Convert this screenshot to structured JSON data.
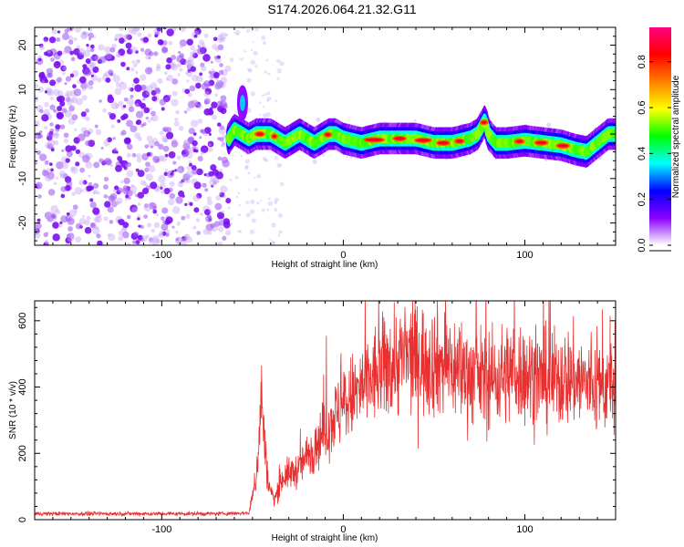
{
  "title": "S174.2026.064.21.32.G11",
  "chart_data": [
    {
      "type": "heatmap",
      "xlabel": "Height of straight line (km)",
      "ylabel": "Frequency (Hz)",
      "xlim": [
        -170,
        150
      ],
      "ylim": [
        -25,
        24
      ],
      "xticks": [
        -100,
        0,
        100
      ],
      "yticks": [
        -20,
        -10,
        0,
        10,
        20
      ],
      "colorbar": {
        "label": "Normalized spectral amplitude",
        "range": [
          0,
          0.95
        ],
        "ticks": [
          0.0,
          0.2,
          0.4,
          0.6,
          0.8
        ],
        "tick_labels": [
          "0.0",
          "0.2",
          "0.4",
          "0.6",
          "0.8"
        ],
        "colormap": [
          "#ffffff",
          "#8a00ff",
          "#0000ff",
          "#00ffff",
          "#00ff00",
          "#ffff00",
          "#ff8000",
          "#ff0000",
          "#ff0080"
        ]
      },
      "noise_region_x": [
        -170,
        -63
      ],
      "trace": {
        "x": [
          -63,
          -60,
          -56,
          -52,
          -48,
          -44,
          -40,
          -36,
          -32,
          -28,
          -24,
          -20,
          -16,
          -12,
          -8,
          -4,
          0,
          10,
          20,
          30,
          40,
          50,
          60,
          70,
          74,
          78,
          80,
          84,
          90,
          100,
          110,
          120,
          128,
          134,
          140,
          146,
          150
        ],
        "y": [
          -1,
          1,
          0,
          -1,
          0,
          0,
          0,
          -1,
          -2,
          -1,
          0,
          -1,
          -2,
          -1,
          0,
          0,
          -1,
          -2,
          -1,
          -1,
          -1,
          -2,
          -2,
          -1,
          0,
          3,
          0,
          -2,
          -2,
          -1.5,
          -2,
          -2.5,
          -3.5,
          -4,
          -2,
          0,
          0
        ]
      },
      "side_feature": {
        "x": [
          -57,
          -54
        ],
        "y": [
          5,
          9
        ]
      }
    },
    {
      "type": "line",
      "xlabel": "Height of straight line (km)",
      "ylabel": "SNR (10 * v/v)",
      "xlim": [
        -170,
        150
      ],
      "ylim": [
        0,
        660
      ],
      "xticks": [
        -100,
        0,
        100
      ],
      "yticks": [
        0,
        200,
        400,
        600
      ],
      "color": "#e83030",
      "series": [
        {
          "x": [
            -170,
            -110,
            -70,
            -52,
            -48,
            -45,
            -43,
            -41,
            -38,
            -33,
            -25,
            -15,
            -5,
            5,
            15,
            25,
            35,
            50,
            65,
            80,
            95,
            110,
            125,
            140,
            150
          ],
          "y": [
            18,
            18,
            18,
            20,
            120,
            380,
            200,
            100,
            60,
            130,
            150,
            230,
            310,
            370,
            420,
            470,
            490,
            480,
            450,
            420,
            450,
            420,
            430,
            400,
            410
          ]
        }
      ]
    }
  ]
}
